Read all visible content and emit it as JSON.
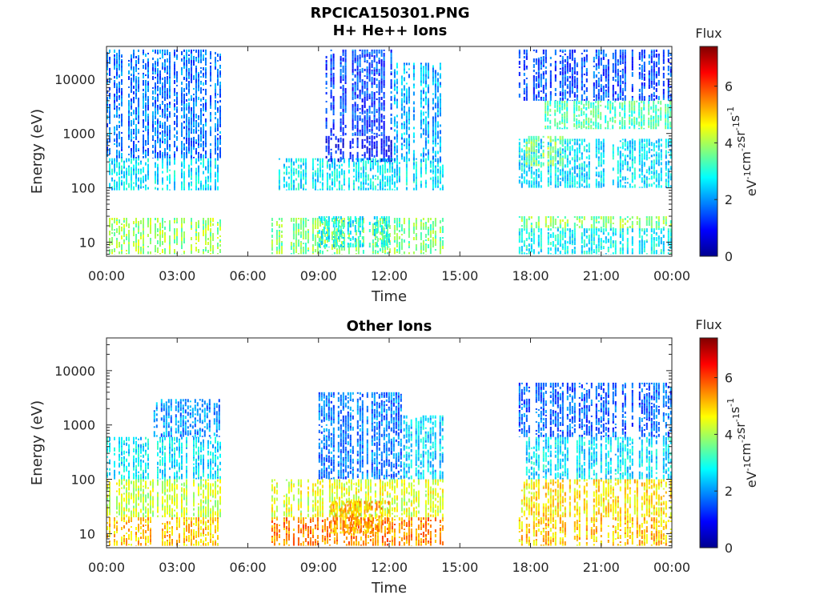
{
  "figure": {
    "filename": "RPCICA150301.PNG"
  },
  "chart_data": [
    {
      "type": "heatmap",
      "title": "H+ He++ Ions",
      "xlabel": "Time",
      "ylabel": "Energy (eV)",
      "x_ticks": [
        "00:00",
        "03:00",
        "06:00",
        "09:00",
        "12:00",
        "15:00",
        "18:00",
        "21:00",
        "00:00"
      ],
      "xlim_hours": [
        0,
        24
      ],
      "y_scale": "log",
      "ylim": [
        5.5,
        40000
      ],
      "y_ticks": [
        10,
        100,
        1000,
        10000
      ],
      "y_tick_labels": [
        "10",
        "100",
        "1000",
        "10000"
      ],
      "colorbar": {
        "label": "Flux",
        "unit": "eV-1 cm-2 sr-1 s-1",
        "range": [
          0,
          7.4
        ],
        "ticks": [
          0,
          2,
          4,
          6
        ]
      },
      "data_intervals_hours": [
        [
          0,
          4.8
        ],
        [
          7.0,
          14.3
        ],
        [
          17.5,
          24.0
        ]
      ],
      "bands": [
        {
          "t": [
            0.0,
            4.8
          ],
          "e": [
            6,
            28
          ],
          "flux": 3.9
        },
        {
          "t": [
            0.0,
            4.8
          ],
          "e": [
            90,
            350
          ],
          "flux": 2.6
        },
        {
          "t": [
            0.0,
            4.8
          ],
          "e": [
            350,
            35000
          ],
          "flux": 1.8
        },
        {
          "t": [
            7.0,
            14.3
          ],
          "e": [
            6,
            28
          ],
          "flux": 3.7
        },
        {
          "t": [
            9.0,
            12.0
          ],
          "e": [
            8,
            30
          ],
          "flux": 2.8
        },
        {
          "t": [
            7.0,
            14.3
          ],
          "e": [
            90,
            350
          ],
          "flux": 2.7
        },
        {
          "t": [
            9.3,
            12.1
          ],
          "e": [
            300,
            900
          ],
          "flux": 1.0
        },
        {
          "t": [
            9.3,
            12.1
          ],
          "e": [
            900,
            35000
          ],
          "flux": 1.4
        },
        {
          "t": [
            12.1,
            14.3
          ],
          "e": [
            300,
            20000
          ],
          "flux": 2.2
        },
        {
          "t": [
            17.5,
            24.0
          ],
          "e": [
            18,
            30
          ],
          "flux": 3.7
        },
        {
          "t": [
            17.5,
            24.0
          ],
          "e": [
            6,
            18
          ],
          "flux": 2.8
        },
        {
          "t": [
            17.5,
            24.0
          ],
          "e": [
            100,
            800
          ],
          "flux": 2.6
        },
        {
          "t": [
            17.8,
            19.5
          ],
          "e": [
            250,
            900
          ],
          "flux": 3.8
        },
        {
          "t": [
            18.5,
            24.0
          ],
          "e": [
            1200,
            4000
          ],
          "flux": 3.3
        },
        {
          "t": [
            17.5,
            24.0
          ],
          "e": [
            4000,
            35000
          ],
          "flux": 1.5
        }
      ]
    },
    {
      "type": "heatmap",
      "title": "Other Ions",
      "xlabel": "Time",
      "ylabel": "Energy (eV)",
      "x_ticks": [
        "00:00",
        "03:00",
        "06:00",
        "09:00",
        "12:00",
        "15:00",
        "18:00",
        "21:00",
        "00:00"
      ],
      "xlim_hours": [
        0,
        24
      ],
      "y_scale": "log",
      "ylim": [
        5.5,
        40000
      ],
      "y_ticks": [
        10,
        100,
        1000,
        10000
      ],
      "y_tick_labels": [
        "10",
        "100",
        "1000",
        "10000"
      ],
      "colorbar": {
        "label": "Flux",
        "unit": "eV-1 cm-2 sr-1 s-1",
        "range": [
          0,
          7.4
        ],
        "ticks": [
          0,
          2,
          4,
          6
        ]
      },
      "data_intervals_hours": [
        [
          0,
          4.8
        ],
        [
          7.0,
          14.3
        ],
        [
          17.5,
          24.0
        ]
      ],
      "bands": [
        {
          "t": [
            0.0,
            4.8
          ],
          "e": [
            6,
            20
          ],
          "flux": 5.0
        },
        {
          "t": [
            0.0,
            4.8
          ],
          "e": [
            20,
            100
          ],
          "flux": 4.2
        },
        {
          "t": [
            0.0,
            4.8
          ],
          "e": [
            100,
            600
          ],
          "flux": 2.6
        },
        {
          "t": [
            2.0,
            4.8
          ],
          "e": [
            600,
            3000
          ],
          "flux": 2.0
        },
        {
          "t": [
            7.0,
            14.3
          ],
          "e": [
            6,
            20
          ],
          "flux": 5.5
        },
        {
          "t": [
            7.0,
            14.3
          ],
          "e": [
            20,
            100
          ],
          "flux": 4.4
        },
        {
          "t": [
            9.5,
            12.2
          ],
          "e": [
            10,
            40
          ],
          "flux": 5.2
        },
        {
          "t": [
            9.0,
            12.5
          ],
          "e": [
            100,
            4000
          ],
          "flux": 1.8
        },
        {
          "t": [
            12.5,
            14.3
          ],
          "e": [
            100,
            1500
          ],
          "flux": 2.5
        },
        {
          "t": [
            17.5,
            24.0
          ],
          "e": [
            6,
            20
          ],
          "flux": 5.0
        },
        {
          "t": [
            17.5,
            24.0
          ],
          "e": [
            20,
            100
          ],
          "flux": 4.8
        },
        {
          "t": [
            17.5,
            24.0
          ],
          "e": [
            100,
            600
          ],
          "flux": 2.6
        },
        {
          "t": [
            17.5,
            24.0
          ],
          "e": [
            600,
            6000
          ],
          "flux": 1.6
        }
      ]
    }
  ]
}
